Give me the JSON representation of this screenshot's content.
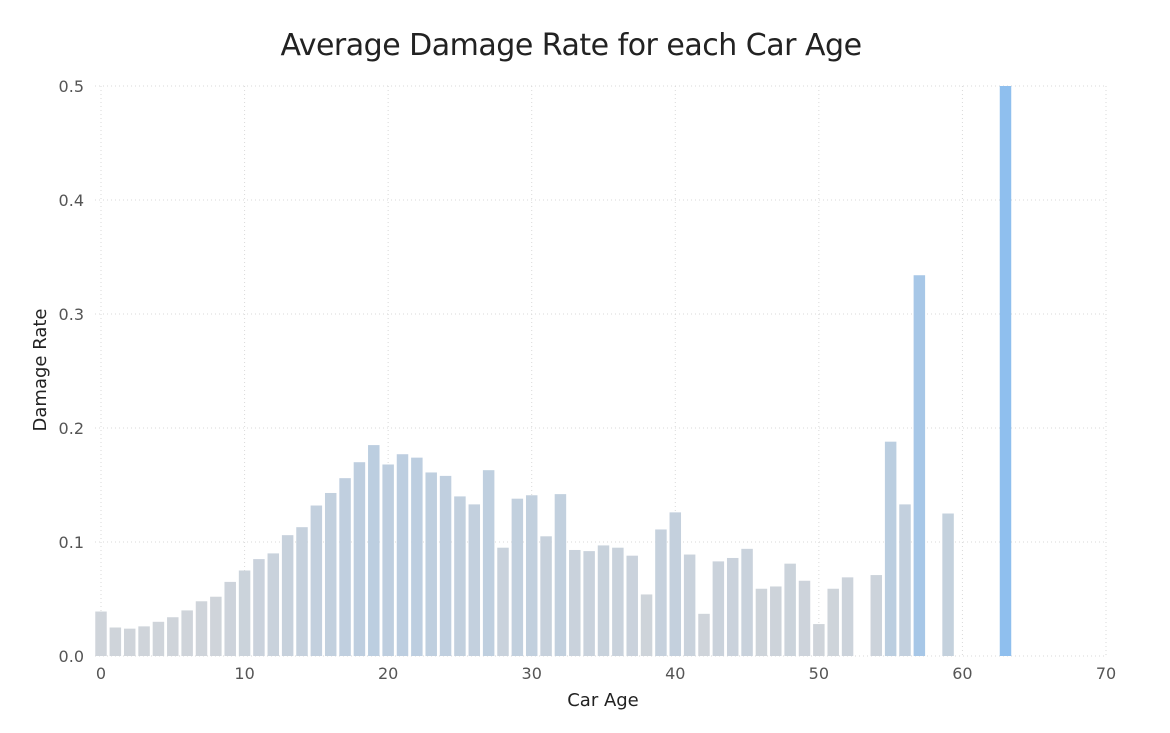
{
  "chart_data": {
    "type": "bar",
    "title": "Average Damage Rate for each Car Age",
    "xlabel": "Car Age",
    "ylabel": "Damage Rate",
    "xlim": [
      0,
      70
    ],
    "ylim": [
      0,
      0.5
    ],
    "x_ticks": [
      "0",
      "10",
      "20",
      "30",
      "40",
      "50",
      "60",
      "70"
    ],
    "y_ticks": [
      "0.0",
      "0.1",
      "0.2",
      "0.3",
      "0.4",
      "0.5"
    ],
    "grid": true,
    "color_low": "#cfd4da",
    "color_high": "#8fbfee",
    "x": [
      0,
      1,
      2,
      3,
      4,
      5,
      6,
      7,
      8,
      9,
      10,
      11,
      12,
      13,
      14,
      15,
      16,
      17,
      18,
      19,
      20,
      21,
      22,
      23,
      24,
      25,
      26,
      27,
      28,
      29,
      30,
      31,
      32,
      33,
      34,
      35,
      36,
      37,
      38,
      39,
      40,
      41,
      42,
      43,
      44,
      45,
      46,
      47,
      48,
      49,
      50,
      51,
      52,
      54,
      55,
      56,
      57,
      59,
      63
    ],
    "values": [
      0.039,
      0.025,
      0.024,
      0.026,
      0.03,
      0.034,
      0.04,
      0.048,
      0.052,
      0.065,
      0.075,
      0.085,
      0.09,
      0.106,
      0.113,
      0.132,
      0.143,
      0.156,
      0.17,
      0.185,
      0.168,
      0.177,
      0.174,
      0.161,
      0.158,
      0.14,
      0.133,
      0.163,
      0.095,
      0.138,
      0.141,
      0.105,
      0.142,
      0.093,
      0.092,
      0.097,
      0.095,
      0.088,
      0.054,
      0.111,
      0.126,
      0.089,
      0.037,
      0.083,
      0.086,
      0.094,
      0.059,
      0.061,
      0.081,
      0.066,
      0.028,
      0.059,
      0.069,
      0.071,
      0.188,
      0.133,
      0.334,
      0.125,
      0.5
    ]
  }
}
